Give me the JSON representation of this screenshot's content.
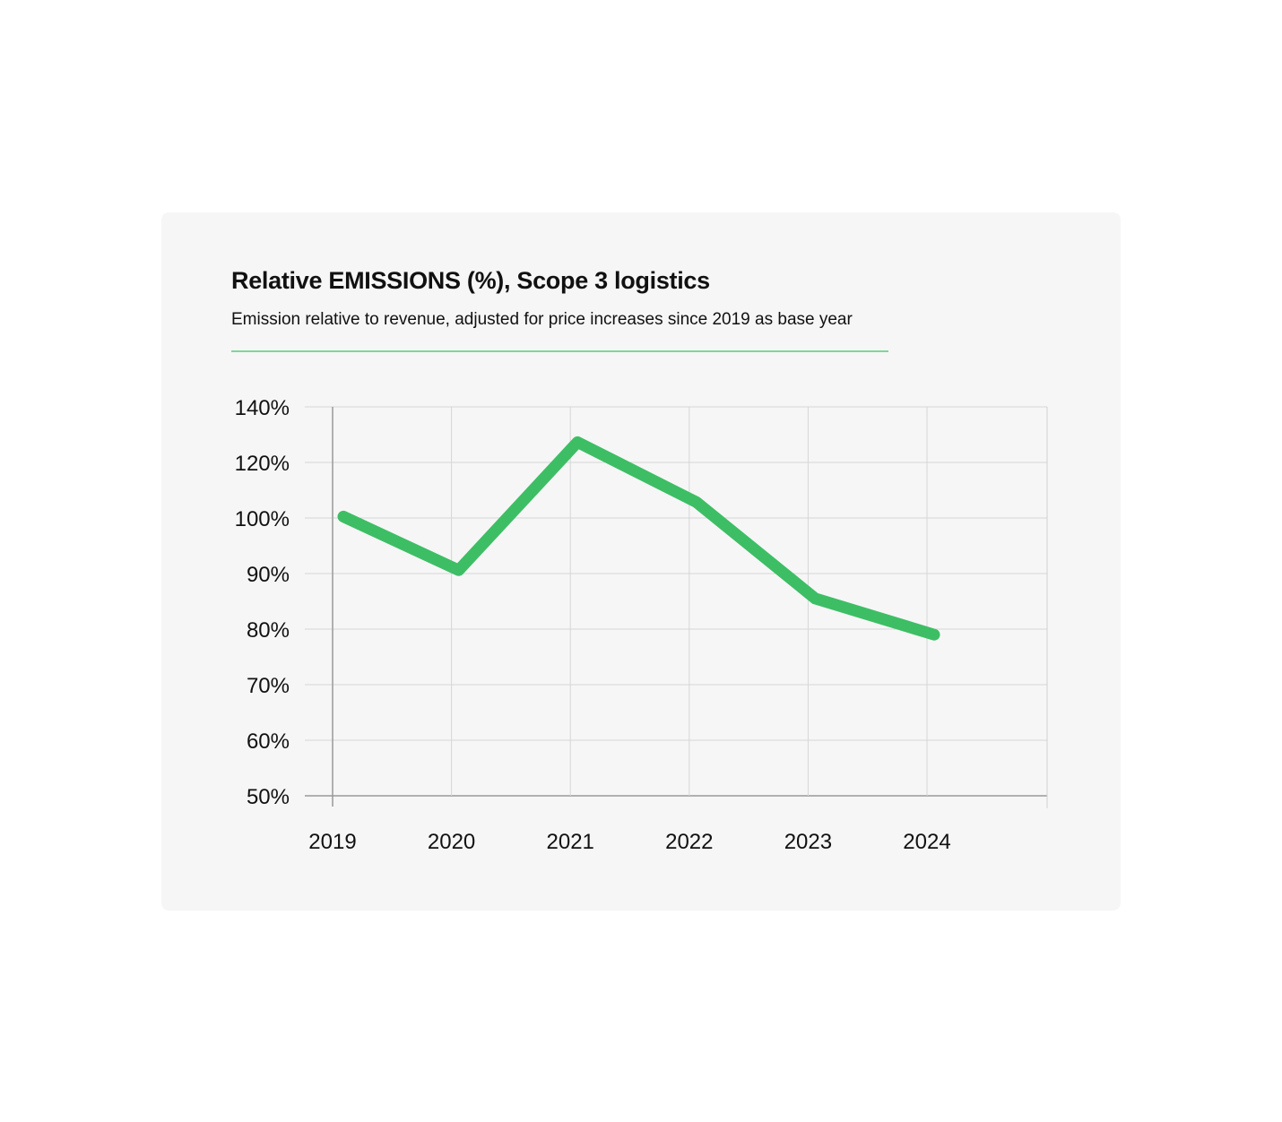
{
  "chart_data": {
    "type": "line",
    "title": "Relative EMISSIONS (%), Scope 3 logistics",
    "subtitle": "Emission relative to revenue, adjusted for price increases since 2019 as base year",
    "xlabel": "",
    "ylabel": "",
    "categories": [
      "2019",
      "2020",
      "2021",
      "2022",
      "2023",
      "2024"
    ],
    "series": [
      {
        "name": "Relative emissions",
        "values": [
          100.5,
          90.6,
          127.3,
          105.7,
          85.5,
          79.0
        ],
        "color": "#3dbe65"
      }
    ],
    "y_ticks": [
      50,
      60,
      70,
      80,
      90,
      100,
      120,
      140
    ],
    "y_tick_labels": [
      "50%",
      "60%",
      "70%",
      "80%",
      "90%",
      "100%",
      "120%",
      "140%"
    ],
    "ylim": [
      50,
      140
    ],
    "y_scale": "piecewise (ticks evenly spaced)",
    "grid": true,
    "legend": "none"
  }
}
